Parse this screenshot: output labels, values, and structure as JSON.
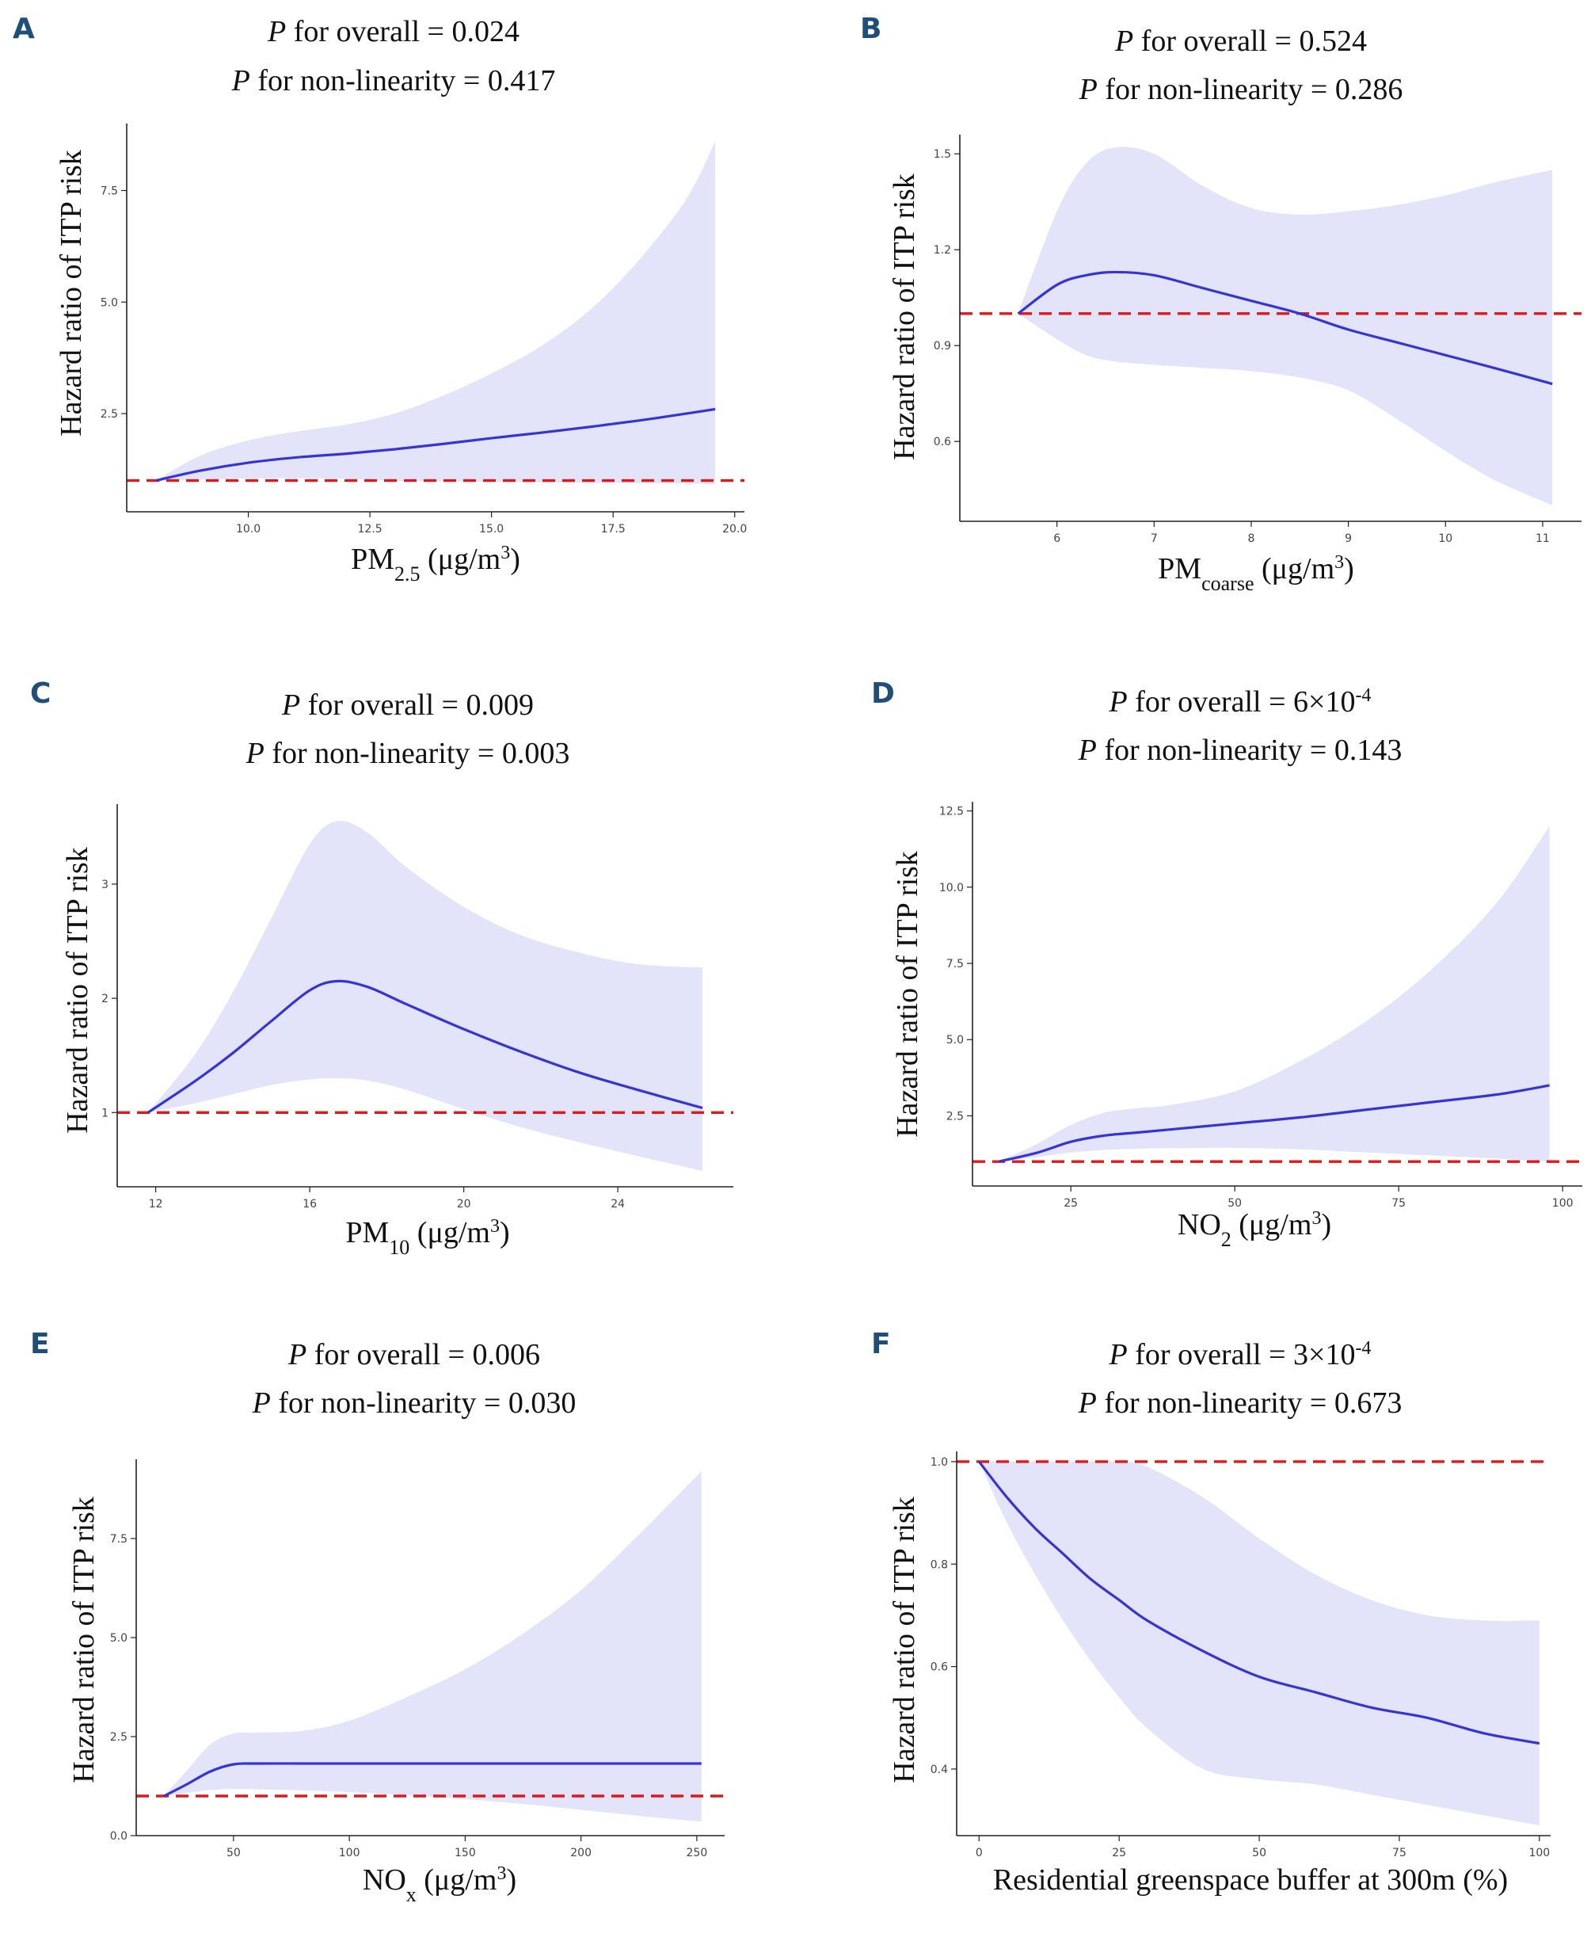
{
  "colors": {
    "band": "#e3e3fa",
    "curve": "#3535d6",
    "reference": "#e01818",
    "panel_letter": "#1f4e79"
  },
  "chart_data": [
    {
      "id": "A",
      "letter": "A",
      "type": "line",
      "title_p_label": "P",
      "title_line1": " for overall = 0.024",
      "title_line2": " for non-linearity = 0.417",
      "ylabel": "Hazard ratio of ITP risk",
      "xlabel": {
        "main": "PM",
        "sub": "2.5",
        "unit": " (μg/m",
        "sup": "3",
        "close": ")"
      },
      "xlim": [
        7.5,
        20.2
      ],
      "ylim": [
        0.3,
        9.0
      ],
      "xticks": [
        10.0,
        12.5,
        15.0,
        17.5,
        20.0
      ],
      "xtick_labels": [
        "10.0",
        "12.5",
        "15.0",
        "17.5",
        "20.0"
      ],
      "yticks": [
        2.5,
        5.0,
        7.5
      ],
      "ytick_labels": [
        "2.5",
        "5.0",
        "7.5"
      ],
      "reference_line": 1.0,
      "x": [
        8.1,
        9,
        10,
        11,
        12,
        13,
        14,
        15,
        16,
        17,
        18,
        19,
        19.6
      ],
      "y": [
        1.0,
        1.22,
        1.4,
        1.52,
        1.6,
        1.7,
        1.82,
        1.95,
        2.07,
        2.2,
        2.34,
        2.5,
        2.6
      ],
      "lower": [
        1.0,
        1.02,
        1.05,
        1.05,
        1.04,
        1.0,
        0.98,
        0.97,
        0.96,
        0.95,
        0.94,
        0.93,
        0.92
      ],
      "upper": [
        1.0,
        1.55,
        1.9,
        2.1,
        2.25,
        2.5,
        2.9,
        3.4,
        4.0,
        4.8,
        5.9,
        7.3,
        8.6
      ]
    },
    {
      "id": "B",
      "letter": "B",
      "type": "line",
      "title_p_label": "P",
      "title_line1": " for overall = 0.524",
      "title_line2": " for non-linearity = 0.286",
      "ylabel": "Hazard ratio of ITP risk",
      "xlabel": {
        "main": "PM",
        "sub": "coarse",
        "unit": " (μg/m",
        "sup": "3",
        "close": ")"
      },
      "xlim": [
        5.0,
        11.4
      ],
      "ylim": [
        0.35,
        1.56
      ],
      "xticks": [
        6,
        7,
        8,
        9,
        10,
        11
      ],
      "xtick_labels": [
        "6",
        "7",
        "8",
        "9",
        "10",
        "11"
      ],
      "yticks": [
        0.6,
        0.9,
        1.2,
        1.5
      ],
      "ytick_labels": [
        "0.6",
        "0.9",
        "1.2",
        "1.5"
      ],
      "reference_line": 1.0,
      "x": [
        5.6,
        6.0,
        6.3,
        6.6,
        7.0,
        7.5,
        8.0,
        8.5,
        9.0,
        9.5,
        10.0,
        10.5,
        11.1
      ],
      "y": [
        1.0,
        1.09,
        1.12,
        1.13,
        1.12,
        1.08,
        1.04,
        1.0,
        0.95,
        0.91,
        0.87,
        0.83,
        0.78
      ],
      "lower": [
        1.0,
        0.92,
        0.87,
        0.85,
        0.84,
        0.83,
        0.82,
        0.8,
        0.76,
        0.67,
        0.57,
        0.48,
        0.4
      ],
      "upper": [
        1.0,
        1.32,
        1.47,
        1.52,
        1.5,
        1.4,
        1.33,
        1.31,
        1.32,
        1.34,
        1.37,
        1.41,
        1.45
      ]
    },
    {
      "id": "C",
      "letter": "C",
      "type": "line",
      "title_p_label": "P",
      "title_line1": " for overall = 0.009",
      "title_line2": " for non-linearity = 0.003",
      "ylabel": "Hazard ratio of ITP risk",
      "xlabel": {
        "main": "PM",
        "sub": "10",
        "unit": " (μg/m",
        "sup": "3",
        "close": ")"
      },
      "xlim": [
        11.0,
        27.0
      ],
      "ylim": [
        0.35,
        3.7
      ],
      "xticks": [
        12,
        16,
        20,
        24
      ],
      "xtick_labels": [
        "12",
        "16",
        "20",
        "24"
      ],
      "yticks": [
        1,
        2,
        3
      ],
      "ytick_labels": [
        "1",
        "2",
        "3"
      ],
      "reference_line": 1.0,
      "x": [
        11.8,
        13,
        14,
        15,
        16,
        16.7,
        17.5,
        18.5,
        20,
        21.5,
        23,
        24.5,
        26.2
      ],
      "y": [
        1.0,
        1.27,
        1.52,
        1.8,
        2.07,
        2.15,
        2.1,
        1.95,
        1.73,
        1.53,
        1.35,
        1.2,
        1.04
      ],
      "lower": [
        1.0,
        1.08,
        1.16,
        1.24,
        1.29,
        1.3,
        1.28,
        1.2,
        1.03,
        0.87,
        0.74,
        0.62,
        0.49
      ],
      "upper": [
        1.0,
        1.5,
        2.05,
        2.7,
        3.35,
        3.55,
        3.45,
        3.15,
        2.8,
        2.55,
        2.4,
        2.3,
        2.27
      ]
    },
    {
      "id": "D",
      "letter": "D",
      "type": "line",
      "title_p_label": "P",
      "title_line1": " for overall = 6×10",
      "title_line1_sup": "-4",
      "title_line2": " for non-linearity = 0.143",
      "ylabel": "Hazard ratio of ITP risk",
      "xlabel": {
        "main": "NO",
        "sub": "2",
        "unit": " (μg/m",
        "sup": "3",
        "close": ")"
      },
      "xlim": [
        10.0,
        103.0
      ],
      "ylim": [
        0.2,
        12.8
      ],
      "xticks": [
        25,
        50,
        75,
        100
      ],
      "xtick_labels": [
        "25",
        "50",
        "75",
        "100"
      ],
      "yticks": [
        2.5,
        5.0,
        7.5,
        10.0,
        12.5
      ],
      "ytick_labels": [
        "2.5",
        "5.0",
        "7.5",
        "10.0",
        "12.5"
      ],
      "reference_line": 1.0,
      "x": [
        14,
        20,
        25,
        30,
        35,
        40,
        50,
        60,
        70,
        80,
        90,
        98
      ],
      "y": [
        1.0,
        1.3,
        1.65,
        1.85,
        1.95,
        2.05,
        2.25,
        2.45,
        2.7,
        2.95,
        3.2,
        3.5
      ],
      "lower": [
        1.0,
        1.15,
        1.3,
        1.38,
        1.42,
        1.44,
        1.45,
        1.4,
        1.3,
        1.2,
        1.1,
        1.0
      ],
      "upper": [
        1.0,
        1.6,
        2.2,
        2.6,
        2.75,
        2.85,
        3.3,
        4.3,
        5.6,
        7.3,
        9.5,
        12.0
      ]
    },
    {
      "id": "E",
      "letter": "E",
      "type": "line",
      "title_p_label": "P",
      "title_line1": " for overall = 0.006",
      "title_line2": " for non-linearity = 0.030",
      "ylabel": "Hazard ratio of ITP risk",
      "xlabel": {
        "main": "NO",
        "sub": "x",
        "unit": " (μg/m",
        "sup": "3",
        "close": ")"
      },
      "xlim": [
        8.0,
        262.0
      ],
      "ylim": [
        0.0,
        9.5
      ],
      "xticks": [
        50,
        100,
        150,
        200,
        250
      ],
      "xtick_labels": [
        "50",
        "100",
        "150",
        "200",
        "250"
      ],
      "yticks": [
        0.0,
        2.5,
        5.0,
        7.5
      ],
      "ytick_labels": [
        "0.0",
        "2.5",
        "5.0",
        "7.5"
      ],
      "reference_line": 1.0,
      "x": [
        20,
        30,
        40,
        50,
        60,
        80,
        100,
        125,
        150,
        175,
        200,
        225,
        252
      ],
      "y": [
        1.0,
        1.3,
        1.62,
        1.8,
        1.82,
        1.82,
        1.82,
        1.82,
        1.82,
        1.82,
        1.82,
        1.82,
        1.82
      ],
      "lower": [
        1.0,
        1.08,
        1.15,
        1.18,
        1.17,
        1.14,
        1.1,
        1.02,
        0.92,
        0.8,
        0.65,
        0.5,
        0.35
      ],
      "upper": [
        1.0,
        1.65,
        2.3,
        2.58,
        2.6,
        2.65,
        2.9,
        3.5,
        4.2,
        5.1,
        6.2,
        7.6,
        9.2
      ]
    },
    {
      "id": "F",
      "letter": "F",
      "type": "line",
      "title_p_label": "P",
      "title_line1": " for overall = 3×10",
      "title_line1_sup": "-4",
      "title_line2": " for non-linearity = 0.673",
      "ylabel": "Hazard ratio of ITP risk",
      "xlabel": {
        "main": "Residential greenspace buffer at 300m (%)",
        "sub": "",
        "unit": "",
        "sup": "",
        "close": ""
      },
      "xlim": [
        -4.0,
        102.0
      ],
      "ylim": [
        0.27,
        1.02
      ],
      "xticks": [
        0,
        25,
        50,
        75,
        100
      ],
      "xtick_labels": [
        "0",
        "25",
        "50",
        "75",
        "100"
      ],
      "yticks": [
        0.4,
        0.6,
        0.8,
        1.0
      ],
      "ytick_labels": [
        "0.4",
        "0.6",
        "0.8",
        "1.0"
      ],
      "reference_line": 1.0,
      "x": [
        0,
        5,
        10,
        15,
        20,
        25,
        30,
        40,
        50,
        60,
        70,
        80,
        90,
        100
      ],
      "y": [
        1.0,
        0.93,
        0.87,
        0.82,
        0.77,
        0.73,
        0.69,
        0.63,
        0.58,
        0.55,
        0.52,
        0.5,
        0.47,
        0.45
      ],
      "lower": [
        1.0,
        0.88,
        0.78,
        0.69,
        0.61,
        0.54,
        0.48,
        0.4,
        0.38,
        0.37,
        0.35,
        0.33,
        0.31,
        0.29
      ],
      "upper": [
        1.0,
        1.0,
        1.0,
        1.0,
        1.0,
        1.0,
        0.99,
        0.93,
        0.85,
        0.78,
        0.73,
        0.7,
        0.69,
        0.69
      ]
    }
  ]
}
